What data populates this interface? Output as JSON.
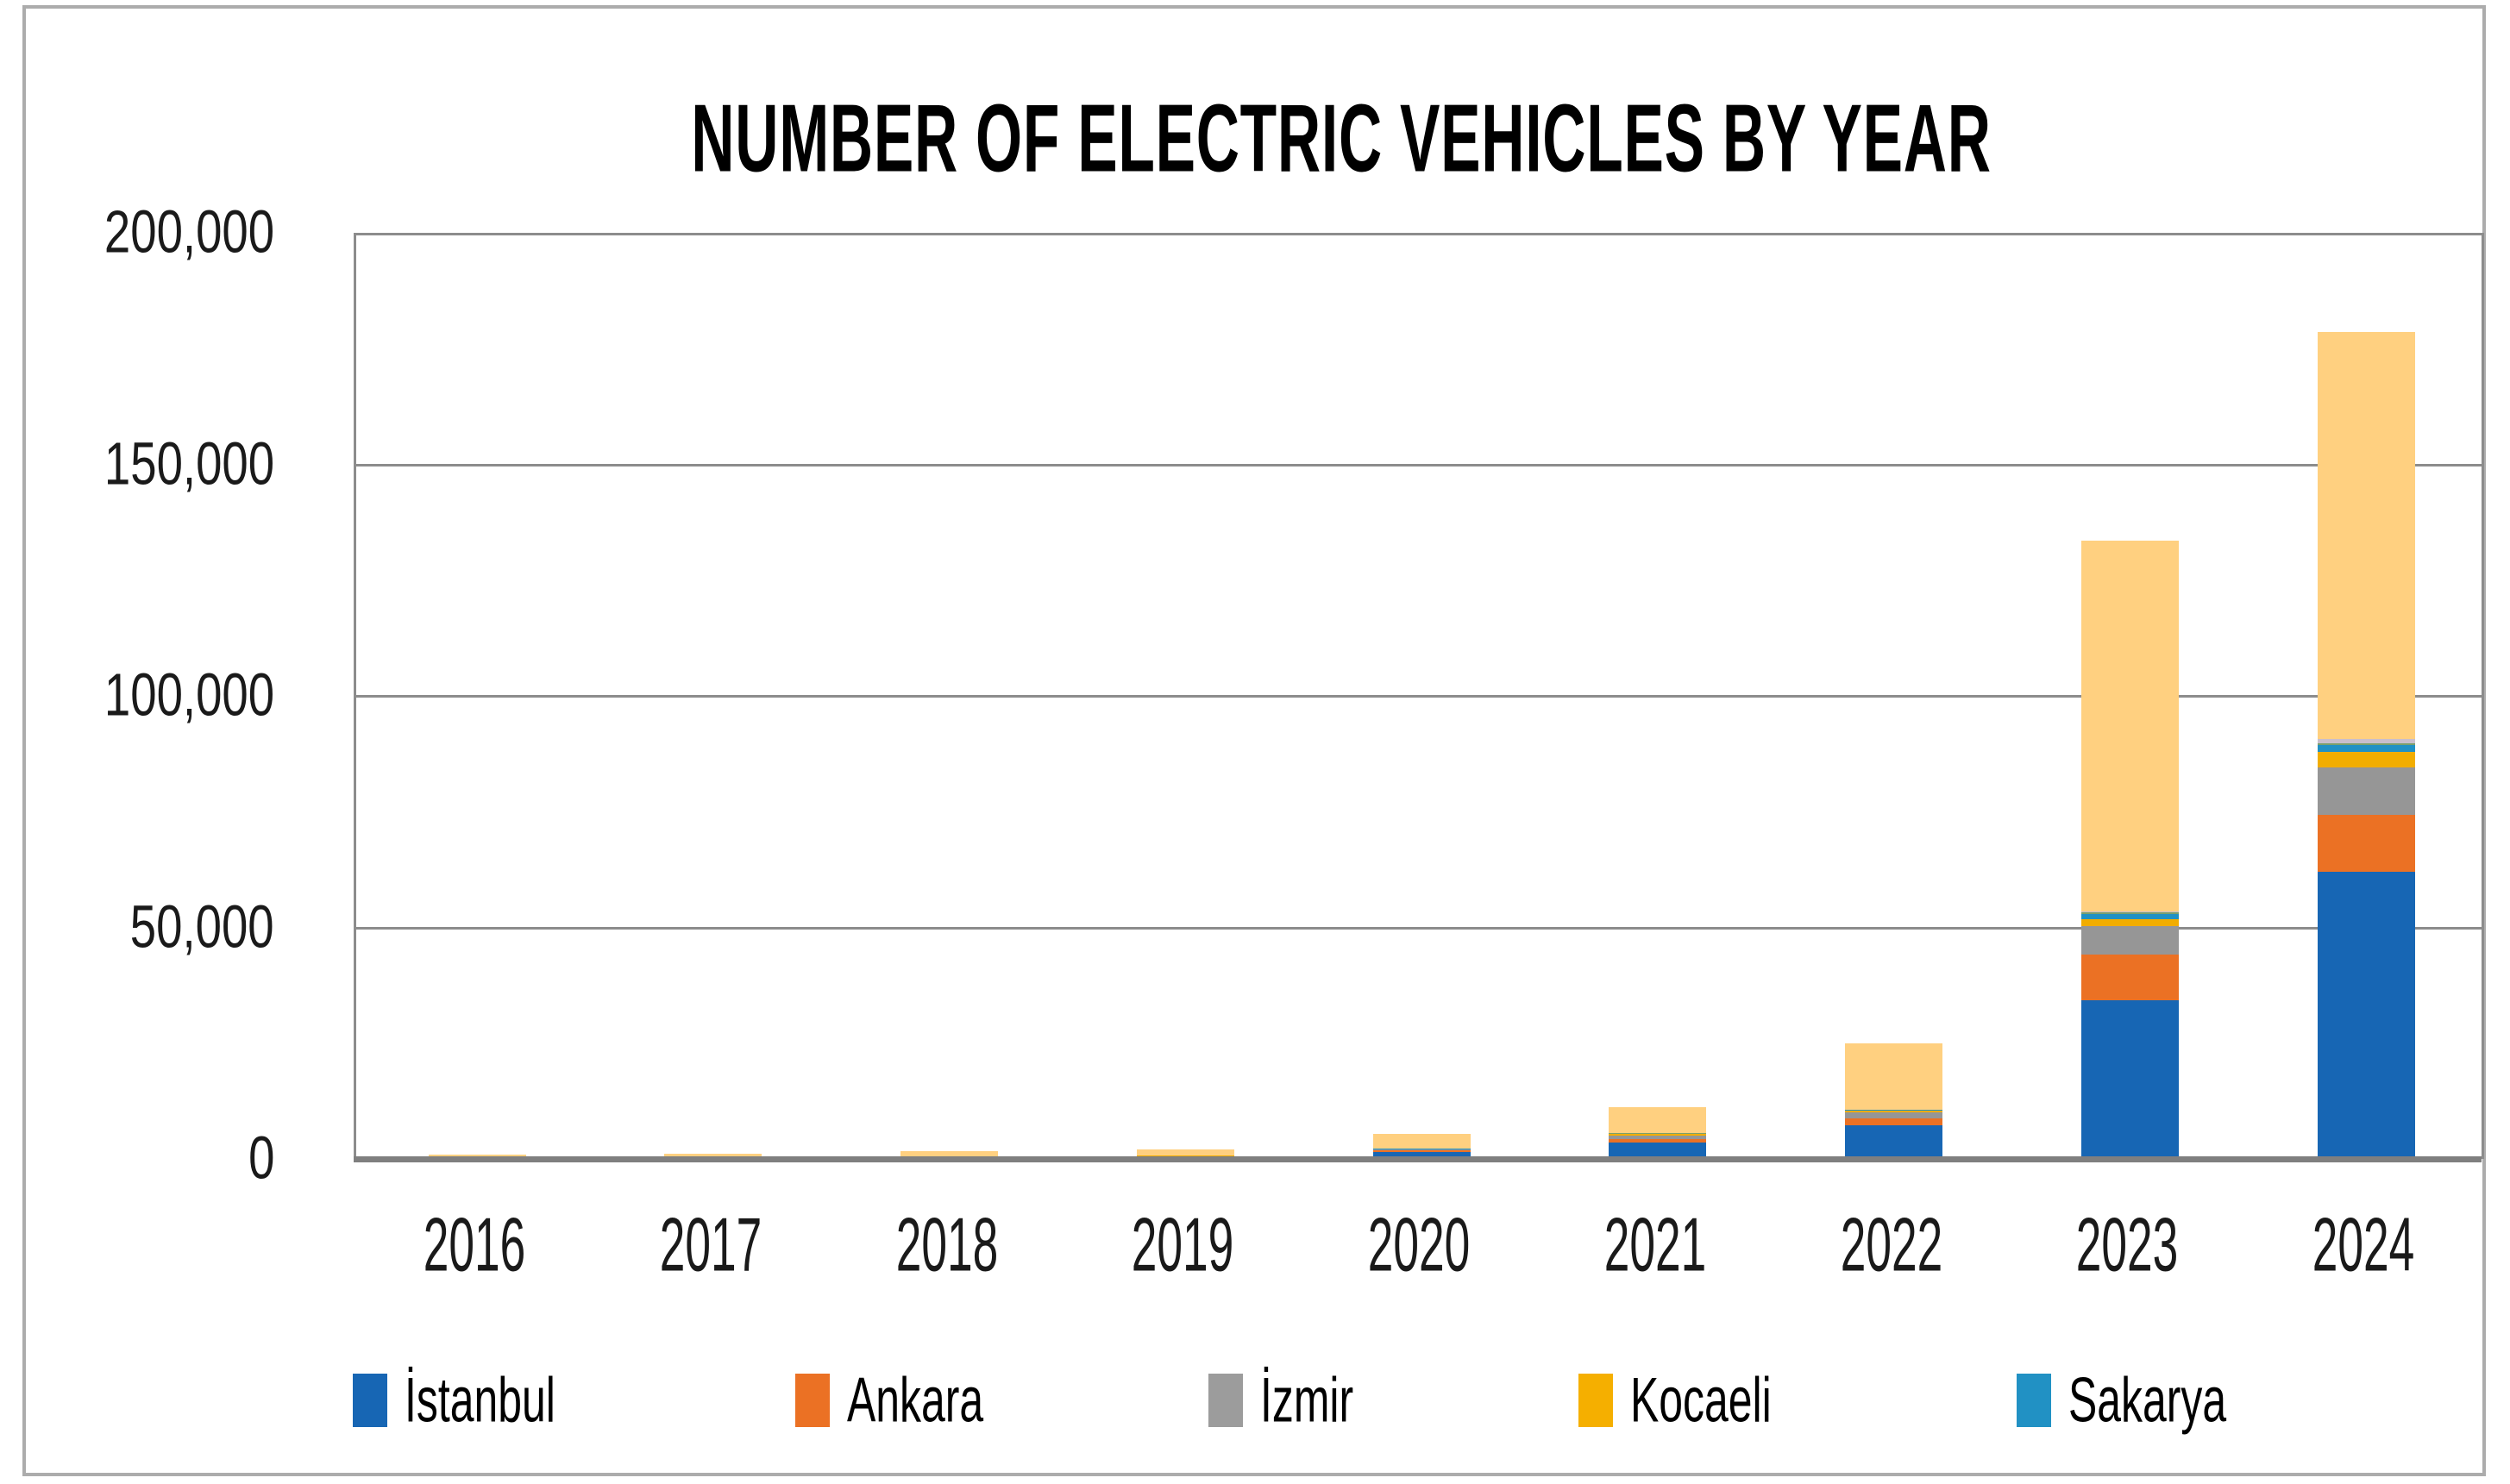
{
  "title": "NUMBER OF ELECTRIC VEHICLES BY YEAR",
  "y_axis": {
    "tick_labels": [
      "200,000",
      "150,000",
      "100,000",
      "50,000",
      "0"
    ],
    "min": 0,
    "max": 200000,
    "step": 50000
  },
  "x_axis": {
    "tick_labels": [
      "2016",
      "2017",
      "2018",
      "2019",
      "2020",
      "2021",
      "2022",
      "2023",
      "2024"
    ]
  },
  "legend": {
    "items": [
      {
        "label": "İstanbul",
        "color": "#1766B4"
      },
      {
        "label": "Ankara",
        "color": "#EB7124"
      },
      {
        "label": "İzmir",
        "color": "#9C9C9C"
      },
      {
        "label": "Kocaeli",
        "color": "#F5AF00"
      },
      {
        "label": "Sakarya",
        "color": "#2191C4"
      }
    ]
  },
  "chart_data": {
    "type": "bar",
    "stacked": true,
    "title": "NUMBER OF ELECTRIC VEHICLES BY YEAR",
    "categories": [
      "2016",
      "2017",
      "2018",
      "2019",
      "2020",
      "2021",
      "2022",
      "2023",
      "2024"
    ],
    "series": [
      {
        "key": "istanbul",
        "name": "İstanbul",
        "in_legend": true,
        "color": "#1766B4",
        "values": [
          100,
          150,
          100,
          550,
          1400,
          3500,
          7300,
          34300,
          62000
        ]
      },
      {
        "key": "ankara",
        "name": "Ankara",
        "in_legend": true,
        "color": "#EB7124",
        "values": [
          50,
          100,
          400,
          100,
          550,
          850,
          1400,
          9900,
          12300
        ]
      },
      {
        "key": "izmir",
        "name": "İzmir",
        "in_legend": true,
        "color": "#969696",
        "values": [
          30,
          50,
          50,
          80,
          150,
          700,
          1400,
          6000,
          10300
        ]
      },
      {
        "key": "kocaeli",
        "name": "Kocaeli",
        "in_legend": true,
        "color": "#F2AD00",
        "values": [
          20,
          30,
          50,
          60,
          80,
          350,
          450,
          1500,
          3300
        ]
      },
      {
        "key": "sakarya",
        "name": "Sakarya",
        "in_legend": true,
        "color": "#2191C4",
        "values": [
          10,
          20,
          30,
          40,
          50,
          100,
          100,
          1100,
          1400
        ]
      },
      {
        "key": "unlabeled-green",
        "name": "",
        "in_legend": false,
        "color": "#7CA06C",
        "values": [
          0,
          0,
          0,
          0,
          0,
          50,
          50,
          550,
          500
        ]
      },
      {
        "key": "unlabeled-lavender",
        "name": "",
        "in_legend": false,
        "color": "#C9BFCC",
        "values": [
          0,
          0,
          0,
          0,
          0,
          0,
          0,
          100,
          900
        ]
      },
      {
        "key": "unlabeled-tan-top",
        "name": "",
        "in_legend": false,
        "color": "#FFD080",
        "values": [
          700,
          800,
          1100,
          1150,
          3100,
          5650,
          14200,
          80000,
          87800
        ]
      }
    ],
    "totals_approx": [
      910,
      1150,
      1730,
      1980,
      5330,
      11200,
      24900,
      133450,
      178500
    ],
    "ylim": [
      0,
      200000
    ],
    "grid": "horizontal",
    "legend_position": "bottom"
  }
}
